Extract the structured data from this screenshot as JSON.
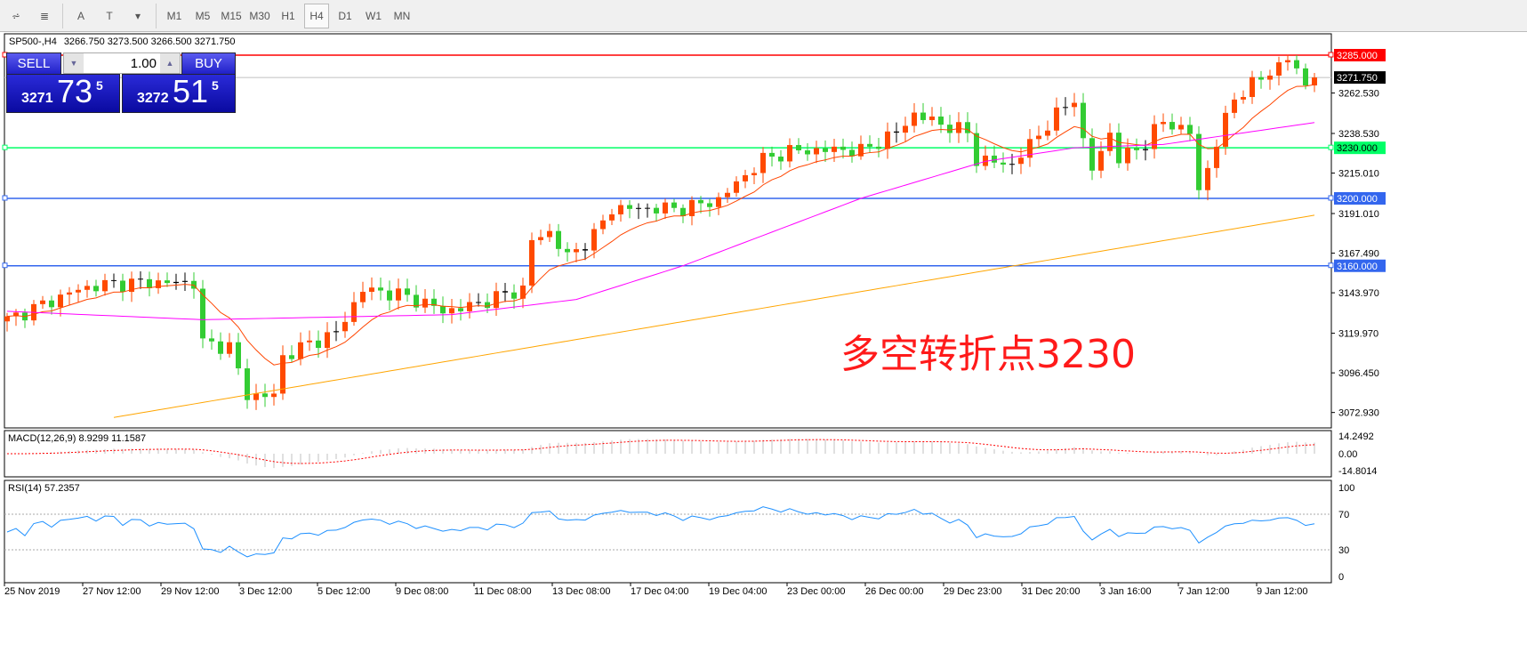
{
  "toolbar": {
    "tools": [
      {
        "icon": "indicators-icon",
        "label": ""
      },
      {
        "icon": "fibonacci-icon",
        "label": ""
      },
      {
        "icon": "text-icon",
        "label": "A"
      },
      {
        "icon": "text-label-icon",
        "label": "T"
      },
      {
        "icon": "arrows-icon",
        "label": "▾"
      }
    ],
    "timeframes": [
      "M1",
      "M5",
      "M15",
      "M30",
      "H1",
      "H4",
      "D1",
      "W1",
      "MN"
    ],
    "active_timeframe": "H4"
  },
  "header": {
    "symbol": "SP500-,H4",
    "ohlc": "3266.750 3273.500 3266.500 3271.750"
  },
  "trade": {
    "sell_label": "SELL",
    "buy_label": "BUY",
    "lot": "1.00",
    "sell": {
      "small": "3271",
      "main": "73",
      "pip": "5"
    },
    "buy": {
      "small": "3272",
      "main": "51",
      "pip": "5"
    }
  },
  "annotation": "多空转折点3230",
  "colors": {
    "bull": "#ff4a00",
    "bear": "#33cc33",
    "line_red": "#ff0000",
    "line_green": "#00ff66",
    "line_blue": "#3366ee",
    "ma_fast": "#ff4500",
    "ma_mid": "#ff00ff",
    "ma_slow": "#ffa500",
    "rsi": "#1e90ff",
    "macd_signal": "#ff0000"
  },
  "chart_data": {
    "type": "candlestick",
    "ylim": [
      3060,
      3295
    ],
    "price_axis": [
      "3262.530",
      "3238.530",
      "3215.010",
      "3191.010",
      "3167.490",
      "3143.970",
      "3119.970",
      "3096.450",
      "3072.930"
    ],
    "hlines": [
      {
        "value": 3285,
        "label": "3285.000",
        "color": "#ff0000"
      },
      {
        "value": 3230,
        "label": "3230.000",
        "color": "#00ff66"
      },
      {
        "value": 3200,
        "label": "3200.000",
        "color": "#3366ee"
      },
      {
        "value": 3160,
        "label": "3160.000",
        "color": "#3366ee"
      }
    ],
    "current": {
      "value": 3271.75,
      "label": "3271.750"
    },
    "close_anchors": [
      [
        0,
        3128
      ],
      [
        8,
        3146
      ],
      [
        11,
        3149
      ],
      [
        15,
        3150
      ],
      [
        21,
        3150
      ],
      [
        22,
        3114
      ],
      [
        25,
        3112
      ],
      [
        27,
        3083
      ],
      [
        30,
        3083
      ],
      [
        31,
        3106
      ],
      [
        34,
        3114
      ],
      [
        37,
        3120
      ],
      [
        40,
        3146
      ],
      [
        44,
        3143
      ],
      [
        47,
        3138
      ],
      [
        49,
        3133
      ],
      [
        52,
        3136
      ],
      [
        56,
        3143
      ],
      [
        58,
        3146
      ],
      [
        59,
        3175
      ],
      [
        61,
        3180
      ],
      [
        63,
        3165
      ],
      [
        66,
        3178
      ],
      [
        68,
        3194
      ],
      [
        72,
        3194
      ],
      [
        76,
        3194
      ],
      [
        80,
        3199
      ],
      [
        82,
        3209
      ],
      [
        85,
        3223
      ],
      [
        88,
        3228
      ],
      [
        94,
        3229
      ],
      [
        96,
        3228
      ],
      [
        100,
        3239
      ],
      [
        102,
        3250
      ],
      [
        104,
        3246
      ],
      [
        108,
        3239
      ],
      [
        109,
        3223
      ],
      [
        113,
        3220
      ],
      [
        117,
        3244
      ],
      [
        120,
        3260
      ],
      [
        121,
        3233
      ],
      [
        122,
        3217
      ],
      [
        124,
        3239
      ],
      [
        125,
        3223
      ],
      [
        128,
        3233
      ],
      [
        130,
        3246
      ],
      [
        133,
        3239
      ],
      [
        134,
        3204
      ],
      [
        136,
        3233
      ],
      [
        138,
        3260
      ],
      [
        142,
        3275
      ],
      [
        144,
        3283
      ],
      [
        146,
        3268
      ],
      [
        147,
        3271.75
      ]
    ],
    "ma_mid_anchors": [
      [
        0,
        3133
      ],
      [
        22,
        3128
      ],
      [
        50,
        3131
      ],
      [
        64,
        3140
      ],
      [
        76,
        3160
      ],
      [
        96,
        3200
      ],
      [
        110,
        3222
      ],
      [
        120,
        3230
      ],
      [
        130,
        3232
      ],
      [
        147,
        3245
      ]
    ],
    "ma_slow_anchors": [
      [
        12,
        3070
      ],
      [
        147,
        3190
      ]
    ],
    "x_labels": [
      "25 Nov 2019",
      "27 Nov 12:00",
      "29 Nov 12:00",
      "3 Dec 12:00",
      "5 Dec 12:00",
      "9 Dec 08:00",
      "11 Dec 08:00",
      "13 Dec 08:00",
      "17 Dec 04:00",
      "19 Dec 04:00",
      "23 Dec 00:00",
      "26 Dec 00:00",
      "29 Dec 23:00",
      "31 Dec 20:00",
      "3 Jan 16:00",
      "7 Jan 12:00",
      "9 Jan 12:00"
    ],
    "macd": {
      "label": "MACD(12,26,9) 8.9299 11.1587",
      "axis": [
        "14.2492",
        "0.00",
        "-14.8014"
      ]
    },
    "rsi": {
      "label": "RSI(14) 57.2357",
      "axis": [
        "100",
        "70",
        "30",
        "0"
      ],
      "levels": [
        70,
        30
      ]
    }
  }
}
